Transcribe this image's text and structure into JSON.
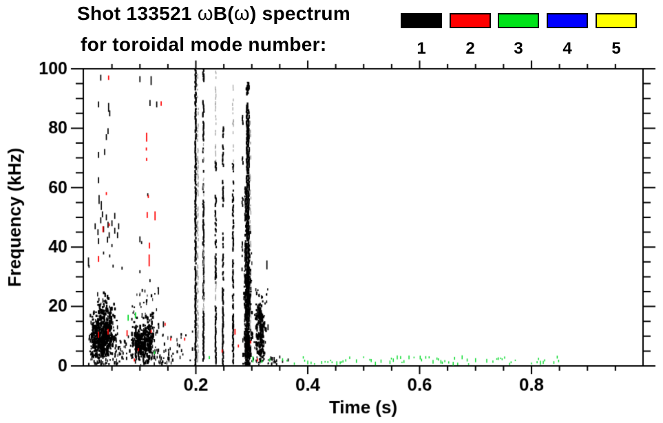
{
  "header": {
    "title_part1": "Shot 133521 ",
    "omega1": "ω",
    "title_part2": "B(",
    "omega2": "ω",
    "title_part3": ") spectrum",
    "subtitle": "for toroidal mode number:"
  },
  "legend": {
    "modes": [
      {
        "label": "1",
        "color": "#000000"
      },
      {
        "label": "2",
        "color": "#ff0000"
      },
      {
        "label": "3",
        "color": "#00e319"
      },
      {
        "label": "4",
        "color": "#0000ff"
      },
      {
        "label": "5",
        "color": "#ffff00"
      }
    ]
  },
  "chart_data": {
    "type": "scatter",
    "title": "Shot 133521 ωB(ω) spectrum for toroidal mode number: 1 2 3 4 5",
    "xlabel": "Time (s)",
    "ylabel": "Frequency (kHz)",
    "xlim": [
      0,
      1
    ],
    "ylim": [
      0,
      100
    ],
    "xticks_major": [
      0.2,
      0.4,
      0.6,
      0.8
    ],
    "xtick_labels": [
      "0.2",
      "0.4",
      "0.6",
      "0.8"
    ],
    "xtick_minor_step": 0.05,
    "yticks_major": [
      0,
      20,
      40,
      60,
      80,
      100
    ],
    "ytick_labels": [
      "0",
      "20",
      "40",
      "60",
      "80",
      "100"
    ],
    "ytick_minor_step": 5,
    "legend_position": "top",
    "grid": false,
    "frame_color": "#000000",
    "colors": {
      "1": "#000000",
      "2": "#ff0000",
      "3": "#00d926",
      "4": "#0000ff",
      "5": "#ffff00",
      "f": "#9b9b9b"
    },
    "seed": 1337,
    "features": [
      {
        "k": "blob",
        "c": "1",
        "t": 0.021,
        "f": 11,
        "st": 0.005,
        "sf": 4.0,
        "n": 130
      },
      {
        "k": "blob",
        "c": "1",
        "t": 0.032,
        "f": 8.5,
        "st": 0.006,
        "sf": 3.2,
        "n": 200
      },
      {
        "k": "blob",
        "c": "1",
        "t": 0.042,
        "f": 12,
        "st": 0.007,
        "sf": 4.0,
        "n": 190
      },
      {
        "k": "blob",
        "c": "1",
        "t": 0.035,
        "f": 19,
        "st": 0.006,
        "sf": 2.6,
        "n": 55
      },
      {
        "k": "scatter",
        "c": "1",
        "t": [
          0.008,
          0.065
        ],
        "f": [
          0.5,
          5
        ],
        "n": 55
      },
      {
        "k": "scatter",
        "c": "1",
        "t": [
          0.05,
          0.088
        ],
        "f": [
          2,
          10
        ],
        "n": 38
      },
      {
        "k": "blob",
        "c": "1",
        "t": 0.095,
        "f": 7.5,
        "st": 0.005,
        "sf": 2.8,
        "n": 110
      },
      {
        "k": "blob",
        "c": "1",
        "t": 0.106,
        "f": 6.5,
        "st": 0.006,
        "sf": 3.2,
        "n": 150
      },
      {
        "k": "blob",
        "c": "1",
        "t": 0.117,
        "f": 9,
        "st": 0.005,
        "sf": 3.8,
        "n": 110
      },
      {
        "k": "scatter",
        "c": "1",
        "t": [
          0.085,
          0.135
        ],
        "f": [
          13,
          27
        ],
        "n": 32
      },
      {
        "k": "scatter",
        "c": "1",
        "t": [
          0.122,
          0.16
        ],
        "f": [
          0.5,
          6
        ],
        "n": 36
      },
      {
        "k": "scatter",
        "c": "1",
        "t": [
          0.14,
          0.195
        ],
        "f": [
          1,
          12
        ],
        "n": 24
      },
      {
        "k": "dashes",
        "c": "1",
        "pts": [
          [
            0.03,
            97,
            2
          ],
          [
            0.026,
            88,
            2
          ],
          [
            0.044,
            87,
            3
          ],
          [
            0.046,
            85,
            2
          ],
          [
            0.043,
            79,
            2
          ],
          [
            0.04,
            77,
            2
          ],
          [
            0.026,
            71,
            2
          ],
          [
            0.037,
            72,
            2
          ],
          [
            0.026,
            62.5,
            2
          ],
          [
            0.027,
            56,
            3
          ],
          [
            0.031,
            54,
            3
          ],
          [
            0.008,
            35,
            3
          ],
          [
            0.009,
            33.5,
            1
          ],
          [
            0.026,
            42,
            2
          ],
          [
            0.042,
            42.5,
            2
          ],
          [
            0.05,
            40.5,
            1
          ],
          [
            0.035,
            38,
            1
          ],
          [
            0.046,
            37,
            1
          ],
          [
            0.052,
            33.6,
            1
          ],
          [
            0.068,
            32.9,
            1
          ],
          [
            0.02,
            47,
            2
          ],
          [
            0.025,
            45,
            2
          ],
          [
            0.03,
            49,
            2
          ],
          [
            0.035,
            46,
            2
          ],
          [
            0.04,
            50,
            2
          ],
          [
            0.045,
            44,
            2
          ],
          [
            0.05,
            48,
            2
          ],
          [
            0.055,
            45.5,
            2
          ],
          [
            0.033,
            51,
            2
          ],
          [
            0.043,
            47.5,
            2
          ],
          [
            0.055,
            50.5,
            2
          ],
          [
            0.06,
            44,
            2
          ],
          [
            0.062,
            47,
            2
          ],
          [
            0.118,
            88.5,
            2
          ],
          [
            0.13,
            88,
            2
          ],
          [
            0.1,
            96.5,
            2
          ],
          [
            0.114,
            57.6,
            1
          ],
          [
            0.1,
            42.6,
            2
          ],
          [
            0.103,
            41.5,
            1
          ],
          [
            0.1,
            31.7,
            1
          ],
          [
            0.118,
            28.7,
            1
          ],
          [
            0.12,
            96,
            3
          ],
          [
            0.133,
            25,
            2
          ],
          [
            0.142,
            14,
            2
          ]
        ]
      },
      {
        "k": "vline",
        "c": "1",
        "t": 0.1995,
        "w": 2.2,
        "segs": [
          [
            0,
            100,
            0.92
          ]
        ]
      },
      {
        "k": "vline",
        "c": "f",
        "t": 0.2035,
        "w": 1.5,
        "segs": [
          [
            0,
            100,
            0.45
          ]
        ]
      },
      {
        "k": "vline",
        "c": "1",
        "t": 0.2135,
        "w": 2.0,
        "segs": [
          [
            96,
            100,
            0.9
          ],
          [
            84,
            89,
            0.8
          ],
          [
            76,
            82,
            0.55
          ],
          [
            58,
            75,
            0.2
          ],
          [
            40,
            56,
            0.7
          ],
          [
            22,
            39,
            0.8
          ],
          [
            2,
            18,
            0.95
          ]
        ]
      },
      {
        "k": "vline",
        "c": "f",
        "t": 0.2135,
        "w": 1.2,
        "segs": [
          [
            18,
            40,
            0.3
          ],
          [
            56,
            76,
            0.25
          ]
        ]
      },
      {
        "k": "vline",
        "c": "1",
        "t": 0.2355,
        "w": 2.0,
        "segs": [
          [
            66,
            69,
            0.85
          ],
          [
            54,
            58,
            0.7
          ],
          [
            40,
            52,
            0.45
          ],
          [
            28,
            38,
            0.6
          ],
          [
            1,
            20,
            0.92
          ]
        ]
      },
      {
        "k": "vline",
        "c": "f",
        "t": 0.2355,
        "w": 1.2,
        "segs": [
          [
            69,
            100,
            0.35
          ],
          [
            20,
            28,
            0.3
          ]
        ]
      },
      {
        "k": "vline",
        "c": "1",
        "t": 0.2485,
        "w": 2.0,
        "segs": [
          [
            77,
            80,
            0.7
          ],
          [
            67,
            74,
            0.5
          ],
          [
            54,
            62,
            0.55
          ],
          [
            29,
            45,
            0.5
          ],
          [
            4,
            26,
            0.88
          ],
          [
            0,
            3,
            0.6
          ]
        ]
      },
      {
        "k": "vline",
        "c": "1",
        "t": 0.2665,
        "w": 2.0,
        "segs": [
          [
            55,
            68,
            0.3
          ],
          [
            39,
            54,
            0.65
          ],
          [
            19,
            36,
            0.72
          ],
          [
            1,
            17,
            0.88
          ]
        ]
      },
      {
        "k": "vline",
        "c": "f",
        "t": 0.2665,
        "w": 1.2,
        "segs": [
          [
            68,
            97,
            0.18
          ]
        ]
      },
      {
        "k": "vline",
        "c": "1",
        "t": 0.2835,
        "w": 1.8,
        "segs": [
          [
            81,
            84,
            0.7
          ],
          [
            68,
            71,
            0.6
          ],
          [
            54,
            56.5,
            0.55
          ],
          [
            28,
            42,
            0.3
          ]
        ]
      },
      {
        "k": "vline",
        "c": "1",
        "t": 0.2915,
        "w": 2.4,
        "segs": [
          [
            0,
            88,
            0.95
          ]
        ]
      },
      {
        "k": "vline",
        "c": "1",
        "t": 0.2945,
        "w": 2.2,
        "segs": [
          [
            0,
            86,
            0.9
          ]
        ]
      },
      {
        "k": "vline",
        "c": "1",
        "t": 0.2885,
        "w": 2.0,
        "segs": [
          [
            0,
            60,
            0.7
          ]
        ]
      },
      {
        "k": "vline",
        "c": "f",
        "t": 0.2975,
        "w": 1.4,
        "segs": [
          [
            10,
            85,
            0.3
          ]
        ]
      },
      {
        "k": "blob",
        "c": "1",
        "t": 0.2925,
        "f": 93.5,
        "st": 0.0015,
        "sf": 1.3,
        "n": 14
      },
      {
        "k": "blob",
        "c": "1",
        "t": 0.2925,
        "f": 24,
        "st": 0.0035,
        "sf": 8,
        "n": 150
      },
      {
        "k": "blob",
        "c": "1",
        "t": 0.2925,
        "f": 7,
        "st": 0.0035,
        "sf": 4,
        "n": 110
      },
      {
        "k": "blob",
        "c": "1",
        "t": 0.316,
        "f": 9,
        "st": 0.0045,
        "sf": 3.8,
        "n": 130
      },
      {
        "k": "blob",
        "c": "1",
        "t": 0.3135,
        "f": 16.5,
        "st": 0.0035,
        "sf": 2.8,
        "n": 55
      },
      {
        "k": "scatter",
        "c": "1",
        "t": [
          0.305,
          0.33
        ],
        "f": [
          20,
          26
        ],
        "n": 13
      },
      {
        "k": "dashes",
        "c": "1",
        "pts": [
          [
            0.327,
            34,
            3
          ],
          [
            0.329,
            13,
            2
          ],
          [
            0.34,
            2.5,
            1
          ],
          [
            0.35,
            3,
            1
          ],
          [
            0.355,
            1.5,
            1
          ],
          [
            0.365,
            2,
            1
          ]
        ]
      },
      {
        "k": "scatter",
        "c": "1",
        "t": [
          0.3,
          0.345
        ],
        "f": [
          0.3,
          3
        ],
        "n": 22
      },
      {
        "k": "dashes",
        "c": "2",
        "pts": [
          [
            0.044,
            97,
            1.5
          ],
          [
            0.026,
            36,
            2
          ],
          [
            0.034,
            46,
            2
          ],
          [
            0.04,
            58,
            1
          ],
          [
            0.045,
            47.5,
            1
          ],
          [
            0.026,
            10.5,
            2
          ],
          [
            0.043,
            11.5,
            2
          ],
          [
            0.077,
            11,
            2
          ],
          [
            0.112,
            77,
            3
          ],
          [
            0.1115,
            73,
            1
          ],
          [
            0.112,
            69.5,
            1
          ],
          [
            0.113,
            50.8,
            2
          ],
          [
            0.117,
            40.5,
            2
          ],
          [
            0.1165,
            35.5,
            4
          ],
          [
            0.115,
            57,
            1
          ],
          [
            0.127,
            50.5,
            3
          ],
          [
            0.138,
            88.3,
            1.5
          ],
          [
            0.12,
            11.6,
            1
          ],
          [
            0.145,
            14,
            1
          ],
          [
            0.155,
            9,
            1
          ],
          [
            0.27,
            11.5,
            2
          ],
          [
            0.276,
            6.7,
            1
          ],
          [
            0.247,
            5,
            1
          ],
          [
            0.18,
            9,
            1
          ],
          [
            0.097,
            5.5,
            1
          ],
          [
            0.09,
            2,
            1
          ],
          [
            0.31,
            2,
            1
          ],
          [
            0.298,
            8,
            1
          ]
        ]
      },
      {
        "k": "dashes",
        "c": "3",
        "pts": [
          [
            0.079,
            16.2,
            2
          ],
          [
            0.092,
            17,
            2
          ],
          [
            0.126,
            4.4,
            1
          ],
          [
            0.224,
            2.8,
            1
          ],
          [
            0.302,
            2.2,
            2
          ],
          [
            0.318,
            1.5,
            1
          ],
          [
            0.332,
            2,
            1
          ]
        ]
      },
      {
        "k": "band",
        "c": "3",
        "f": [
          0.6,
          3.0
        ],
        "ts": [
          0.355,
          0.363,
          0.376,
          0.392,
          0.4,
          0.406,
          0.412,
          0.425,
          0.431,
          0.436,
          0.441,
          0.452,
          0.458,
          0.463,
          0.468,
          0.475,
          0.487,
          0.5,
          0.511,
          0.521,
          0.531,
          0.547,
          0.553,
          0.56,
          0.566,
          0.572,
          0.581,
          0.59,
          0.601,
          0.611,
          0.617,
          0.624,
          0.631,
          0.638,
          0.645,
          0.652,
          0.66,
          0.668,
          0.676,
          0.685,
          0.7,
          0.72,
          0.731,
          0.738,
          0.745,
          0.752,
          0.761,
          0.771,
          0.8,
          0.81,
          0.816,
          0.821,
          0.84,
          0.846
        ]
      }
    ]
  }
}
